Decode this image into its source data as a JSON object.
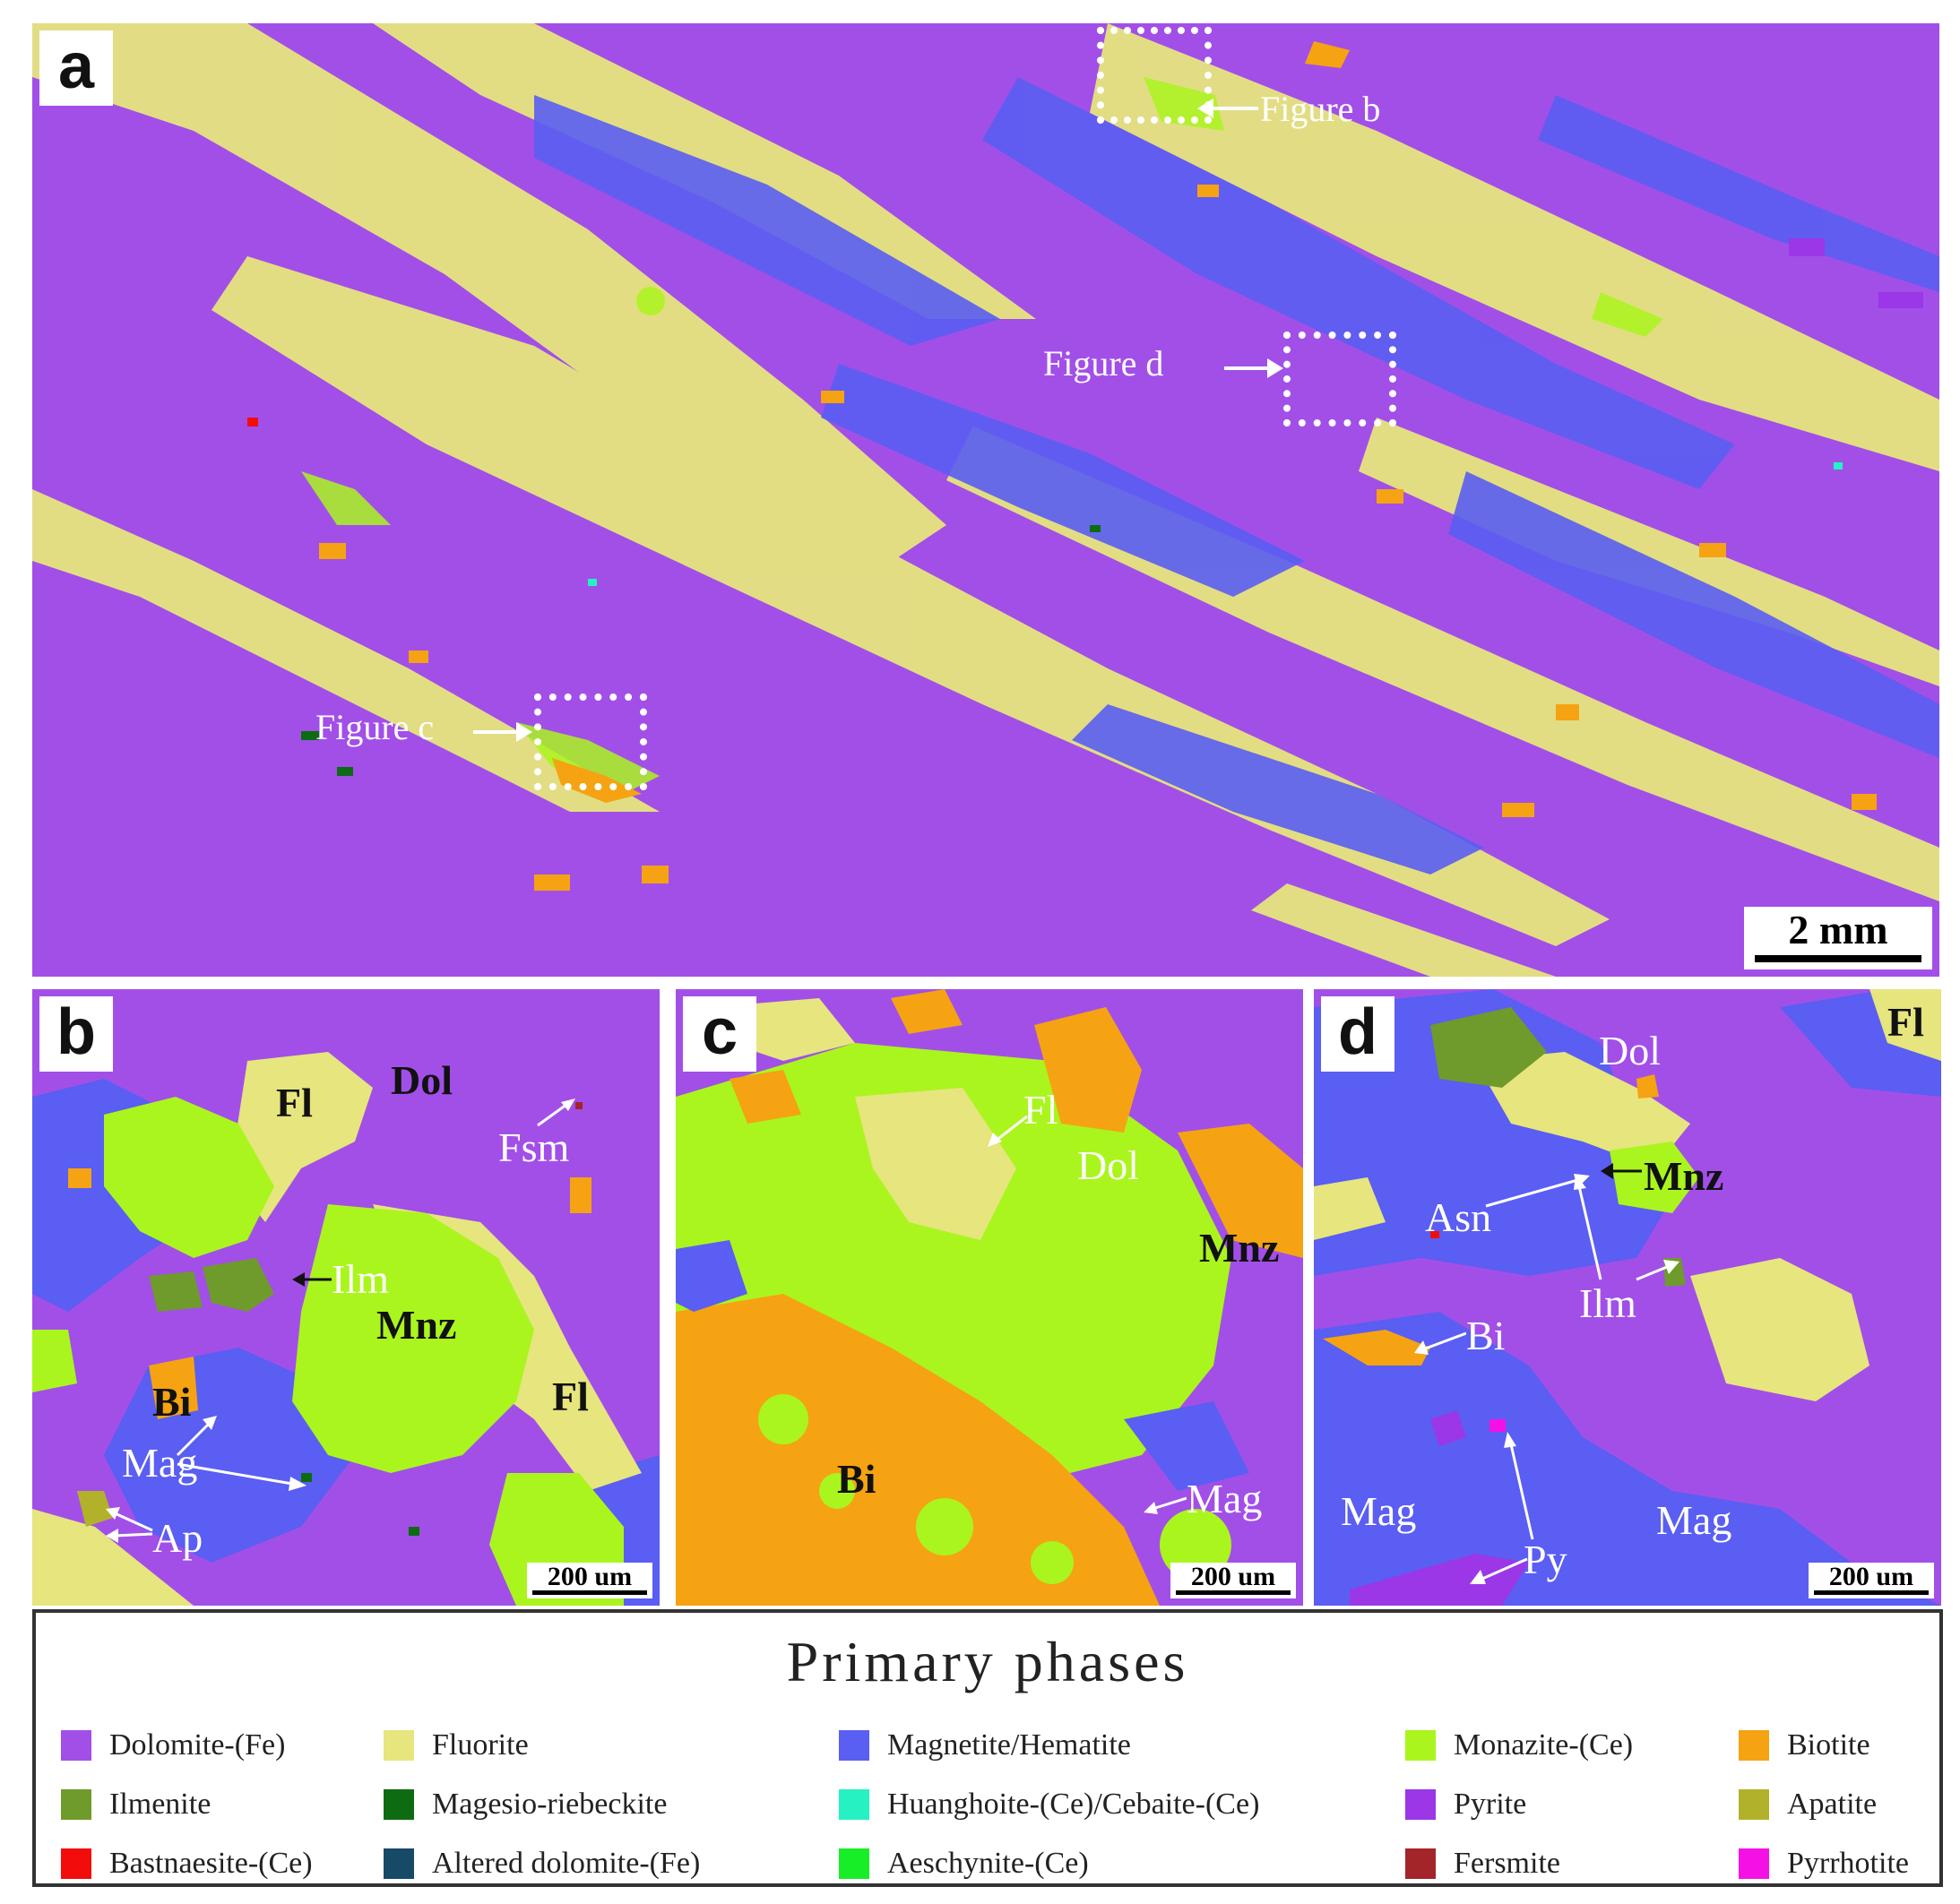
{
  "panels": {
    "a": {
      "label": "a",
      "scale": "2 mm",
      "callouts": [
        "Figure b",
        "Figure d",
        "Figure c"
      ]
    },
    "b": {
      "label": "b",
      "scale": "200 um",
      "minerals": [
        "Dol",
        "Fl",
        "Fsm",
        "Ilm",
        "Mnz",
        "Fl",
        "Bi",
        "Mag",
        "Ap"
      ]
    },
    "c": {
      "label": "c",
      "scale": "200 um",
      "minerals": [
        "Fl",
        "Dol",
        "Mnz",
        "Bi",
        "Mag"
      ]
    },
    "d": {
      "label": "d",
      "scale": "200 um",
      "minerals": [
        "Dol",
        "Fl",
        "Mnz",
        "Asn",
        "Ilm",
        "Bi",
        "Mag",
        "Py",
        "Mag"
      ]
    }
  },
  "legend": {
    "title": "Primary   phases",
    "items": [
      {
        "name": "Dolomite-(Fe)",
        "color": "#a24fe8"
      },
      {
        "name": "Fluorite",
        "color": "#e6e57e"
      },
      {
        "name": "Magnetite/Hematite",
        "color": "#5a5ef2"
      },
      {
        "name": "Monazite-(Ce)",
        "color": "#aaf51e"
      },
      {
        "name": "Biotite",
        "color": "#f5a312"
      },
      {
        "name": "Ilmenite",
        "color": "#6f9a2c"
      },
      {
        "name": "Magesio-riebeckite",
        "color": "#0d6b12"
      },
      {
        "name": "Huanghoite-(Ce)/Cebaite-(Ce)",
        "color": "#26f1c2"
      },
      {
        "name": "Pyrite",
        "color": "#9b37e6"
      },
      {
        "name": "Apatite",
        "color": "#b1b22a"
      },
      {
        "name": "Bastnaesite-(Ce)",
        "color": "#f20c0c"
      },
      {
        "name": "Altered dolomite-(Fe)",
        "color": "#164a66"
      },
      {
        "name": "Aeschynite-(Ce)",
        "color": "#18ee28"
      },
      {
        "name": "Fersmite",
        "color": "#a3252a"
      },
      {
        "name": "Pyrrhotite",
        "color": "#f511e6"
      }
    ]
  }
}
